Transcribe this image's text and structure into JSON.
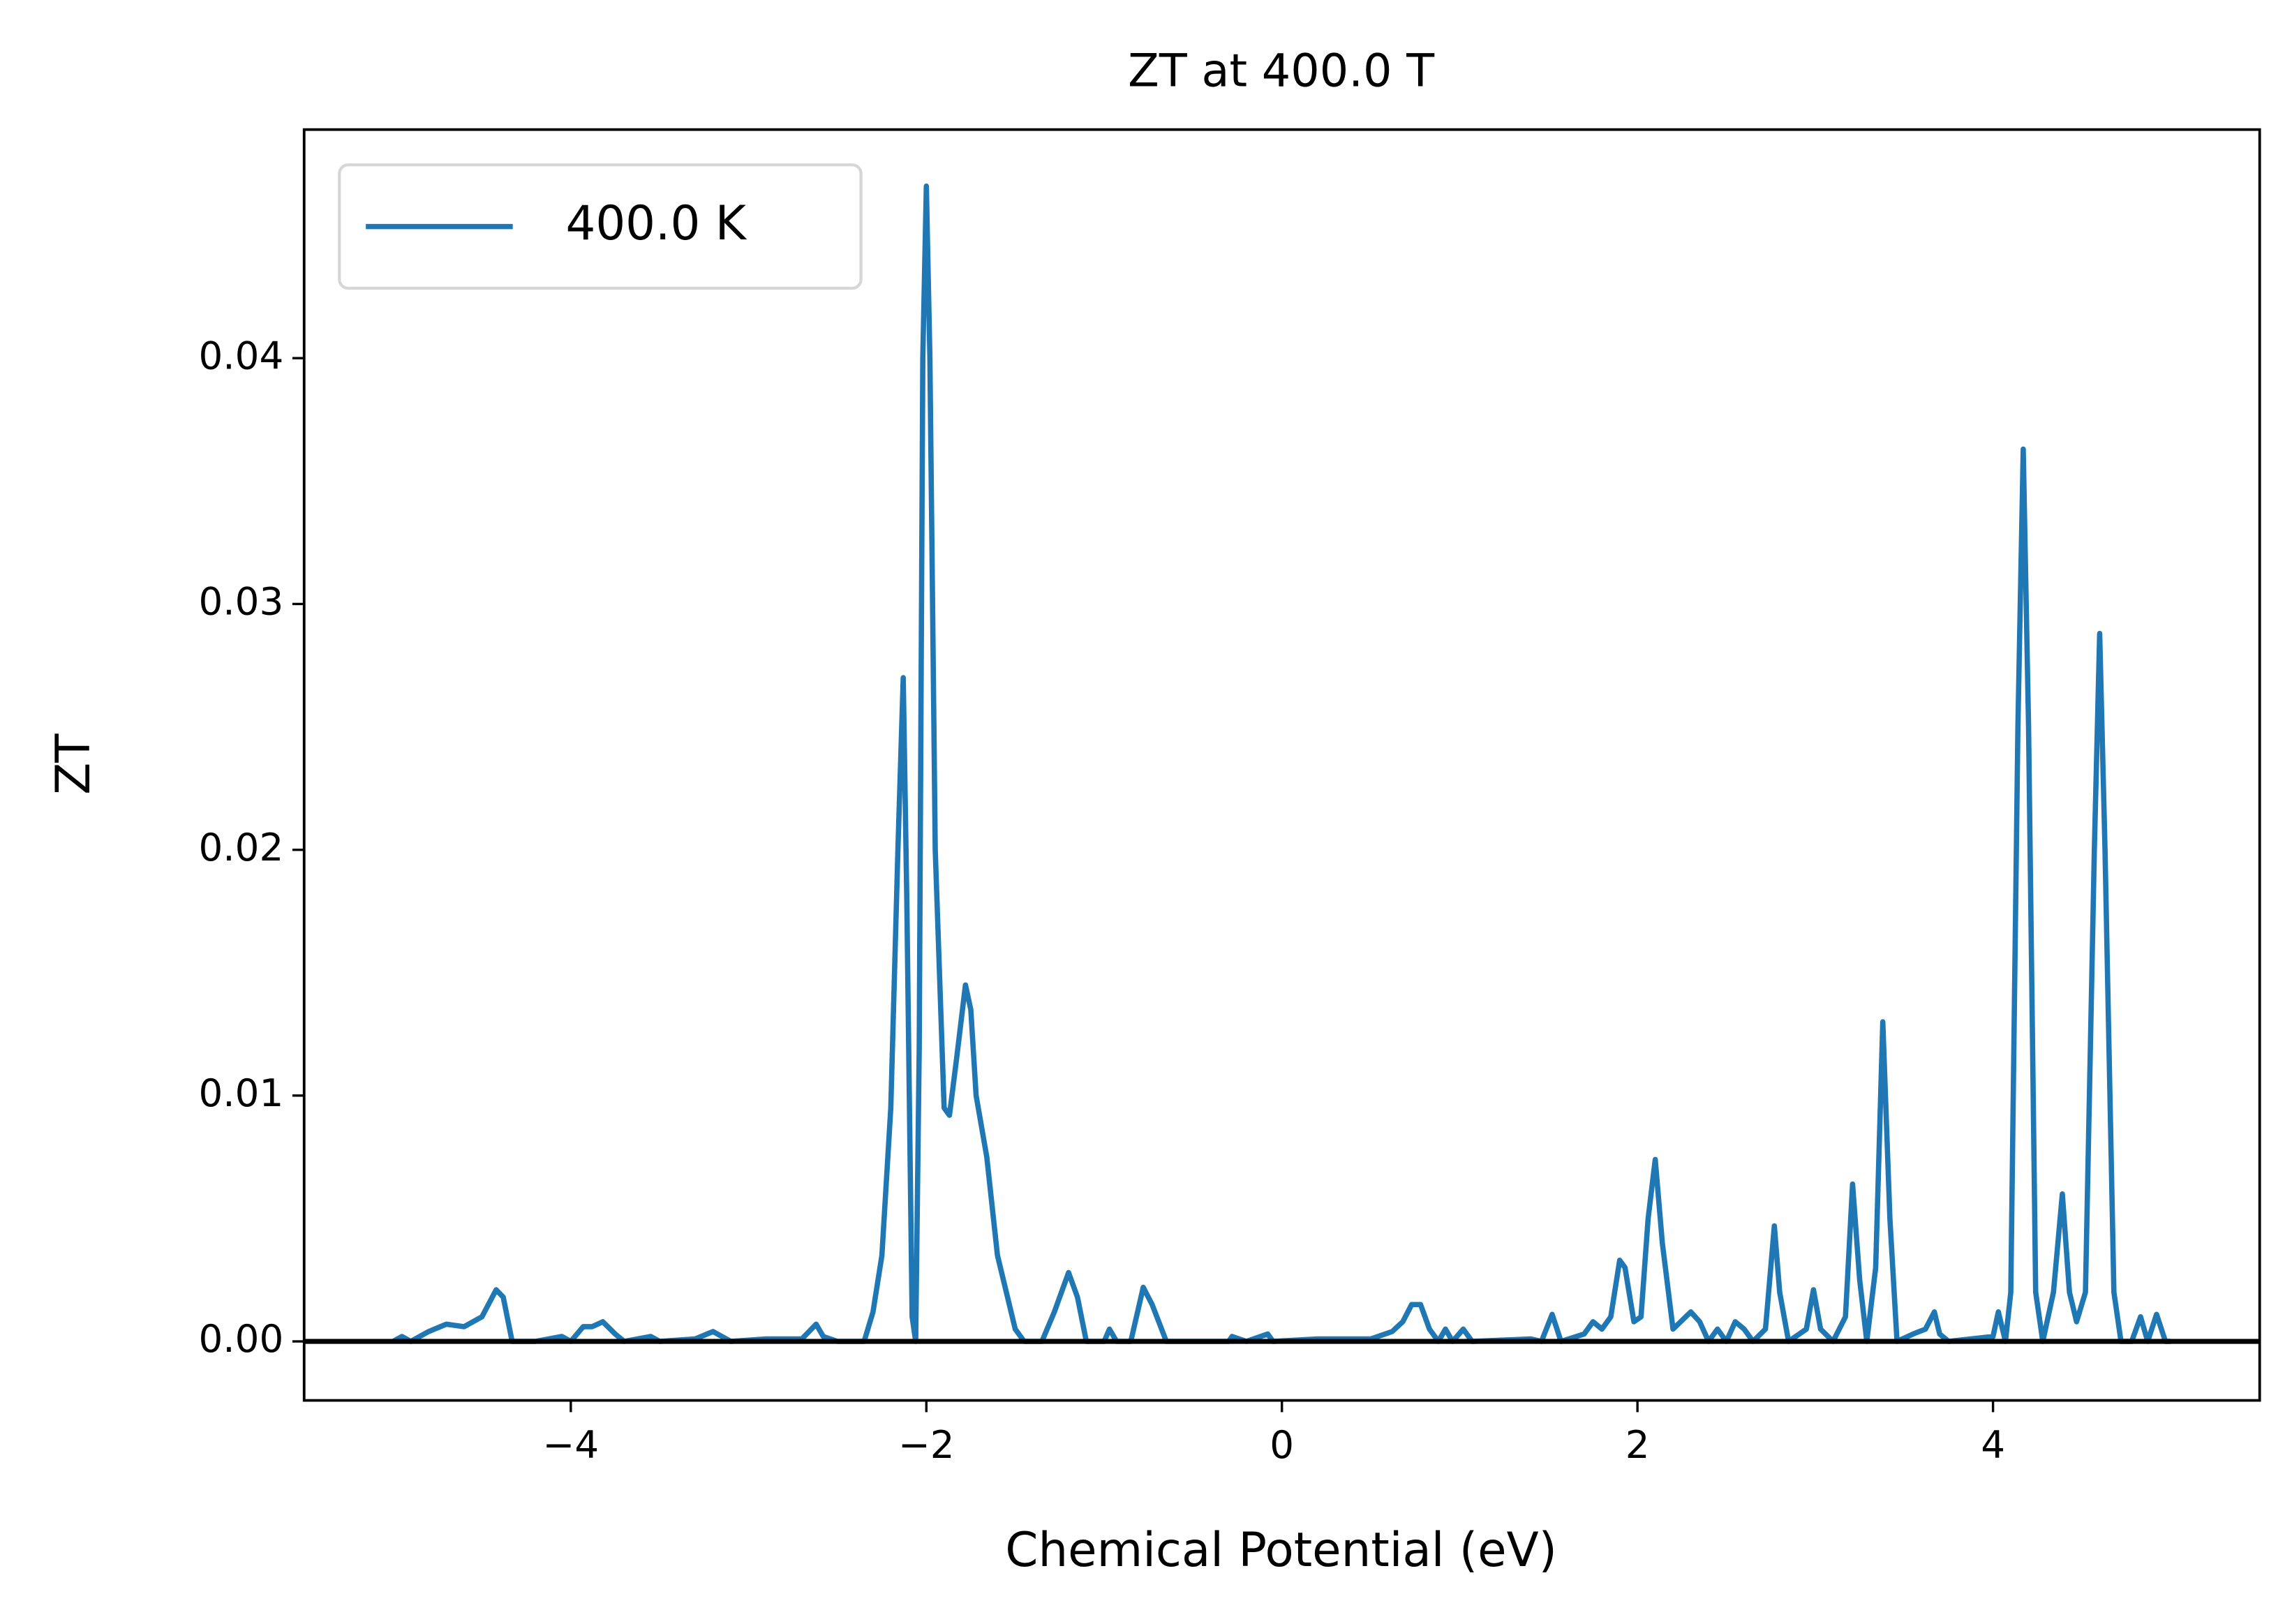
{
  "chart_data": {
    "type": "line",
    "title": "ZT at 400.0 T",
    "xlabel": "Chemical Potential (eV)",
    "ylabel": "ZT",
    "xlim": [
      -5.5,
      5.5
    ],
    "ylim": [
      -0.0024,
      0.0493
    ],
    "xticks": [
      {
        "value": -4,
        "label": "−4"
      },
      {
        "value": -2,
        "label": "−2"
      },
      0,
      2,
      4
    ],
    "yticks": [
      {
        "value": 0,
        "label": "0.00"
      },
      0.01,
      0.02,
      0.03,
      0.04
    ],
    "hline": 0,
    "hline_color": "#000000",
    "legend": "upper left",
    "x": [
      -5.0,
      -4.95,
      -4.9,
      -4.8,
      -4.7,
      -4.6,
      -4.5,
      -4.42,
      -4.38,
      -4.33,
      -4.2,
      -4.05,
      -4.0,
      -3.93,
      -3.88,
      -3.82,
      -3.75,
      -3.7,
      -3.55,
      -3.5,
      -3.3,
      -3.2,
      -3.1,
      -2.9,
      -2.7,
      -2.62,
      -2.58,
      -2.5,
      -2.35,
      -2.3,
      -2.25,
      -2.2,
      -2.16,
      -2.13,
      -2.11,
      -2.08,
      -2.06,
      -2.04,
      -2.02,
      -2.0,
      -1.98,
      -1.95,
      -1.9,
      -1.87,
      -1.83,
      -1.78,
      -1.75,
      -1.72,
      -1.66,
      -1.6,
      -1.55,
      -1.5,
      -1.45,
      -1.35,
      -1.28,
      -1.2,
      -1.15,
      -1.1,
      -1.0,
      -0.97,
      -0.93,
      -0.85,
      -0.78,
      -0.73,
      -0.65,
      -0.3,
      -0.28,
      -0.2,
      -0.08,
      -0.05,
      0.2,
      0.5,
      0.62,
      0.68,
      0.73,
      0.78,
      0.83,
      0.88,
      0.92,
      0.96,
      1.02,
      1.07,
      1.4,
      1.46,
      1.52,
      1.57,
      1.7,
      1.75,
      1.8,
      1.85,
      1.9,
      1.93,
      1.98,
      2.02,
      2.06,
      2.1,
      2.14,
      2.2,
      2.3,
      2.35,
      2.4,
      2.45,
      2.5,
      2.55,
      2.6,
      2.65,
      2.72,
      2.77,
      2.8,
      2.85,
      2.95,
      2.99,
      3.03,
      3.1,
      3.17,
      3.21,
      3.25,
      3.29,
      3.34,
      3.38,
      3.42,
      3.46,
      3.55,
      3.62,
      3.67,
      3.7,
      3.75,
      4.0,
      4.03,
      4.07,
      4.1,
      4.14,
      4.17,
      4.2,
      4.24,
      4.28,
      4.34,
      4.39,
      4.43,
      4.47,
      4.52,
      4.57,
      4.6,
      4.63,
      4.68,
      4.72,
      4.78,
      4.83,
      4.87,
      4.92,
      4.97,
      5.0
    ],
    "series": [
      {
        "name": "400.0 K",
        "color": "#1f77b4",
        "values": [
          0,
          0.0002,
          0,
          0.0004,
          0.0007,
          0.0006,
          0.001,
          0.0021,
          0.0018,
          0,
          0,
          0.0002,
          0,
          0.0006,
          0.0006,
          0.0008,
          0.0003,
          0,
          0.0002,
          0,
          0.0001,
          0.0004,
          0,
          0.0001,
          0.0001,
          0.0007,
          0.0002,
          0,
          0,
          0.0012,
          0.0035,
          0.0095,
          0.02,
          0.027,
          0.018,
          0.001,
          0,
          0.012,
          0.04,
          0.047,
          0.04,
          0.02,
          0.0095,
          0.0092,
          0.0115,
          0.0145,
          0.0135,
          0.01,
          0.0075,
          0.0035,
          0.002,
          0.0005,
          0,
          0,
          0.0012,
          0.0028,
          0.0018,
          0,
          0,
          0.0005,
          0,
          0,
          0.0022,
          0.0015,
          0,
          0,
          0.0002,
          0,
          0.0003,
          0,
          0.0001,
          0.0001,
          0.0004,
          0.0008,
          0.0015,
          0.0015,
          0.0005,
          0,
          0.0005,
          0,
          0.0005,
          0,
          0.0001,
          0,
          0.0011,
          0,
          0.0003,
          0.0008,
          0.0005,
          0.001,
          0.0033,
          0.003,
          0.0008,
          0.001,
          0.005,
          0.0074,
          0.004,
          0.0005,
          0.0012,
          0.0008,
          0,
          0.0005,
          0,
          0.0008,
          0.0005,
          0,
          0.0005,
          0.0047,
          0.002,
          0,
          0.0005,
          0.0021,
          0.0005,
          0,
          0.001,
          0.0064,
          0.0025,
          0,
          0.003,
          0.013,
          0.005,
          0,
          0.0003,
          0.0005,
          0.0012,
          0.0003,
          0,
          0.0002,
          0.0012,
          0,
          0.002,
          0.025,
          0.0363,
          0.025,
          0.002,
          0,
          0.002,
          0.006,
          0.002,
          0.0008,
          0.002,
          0.02,
          0.0288,
          0.02,
          0.002,
          0,
          0,
          0.001,
          0,
          0.0011,
          0,
          0
        ]
      }
    ]
  }
}
